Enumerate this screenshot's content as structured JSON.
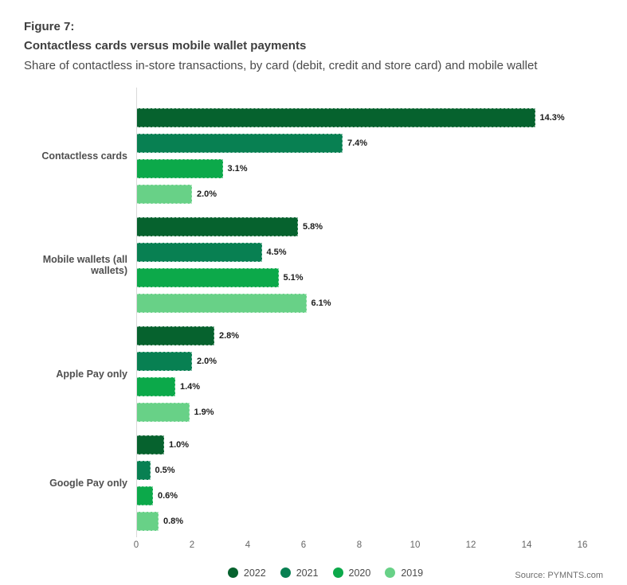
{
  "figure": {
    "label": "Figure 7:",
    "title": "Contactless cards versus mobile wallet payments",
    "subtitle": "Share of contactless in-store transactions, by card (debit, credit and store card) and mobile wallet"
  },
  "chart_data": {
    "type": "bar",
    "orientation": "horizontal",
    "title": "Contactless cards versus mobile wallet payments",
    "categories": [
      "Contactless cards",
      "Mobile wallets (all wallets)",
      "Apple Pay only",
      "Google Pay only"
    ],
    "series": [
      {
        "name": "2022",
        "color": "#06622E",
        "values": [
          14.3,
          5.8,
          2.8,
          1.0
        ]
      },
      {
        "name": "2021",
        "color": "#088052",
        "values": [
          7.4,
          4.5,
          2.0,
          0.5
        ]
      },
      {
        "name": "2020",
        "color": "#0CA94A",
        "values": [
          3.1,
          5.1,
          1.4,
          0.6
        ]
      },
      {
        "name": "2019",
        "color": "#68D187",
        "values": [
          2.0,
          6.1,
          1.9,
          0.8
        ]
      }
    ],
    "value_suffix": "%",
    "xlim": [
      0,
      16
    ],
    "x_ticks": [
      0,
      2,
      4,
      6,
      8,
      10,
      12,
      14,
      16
    ],
    "legend_position": "bottom",
    "grid": false
  },
  "source": "Source: PYMNTS.com"
}
